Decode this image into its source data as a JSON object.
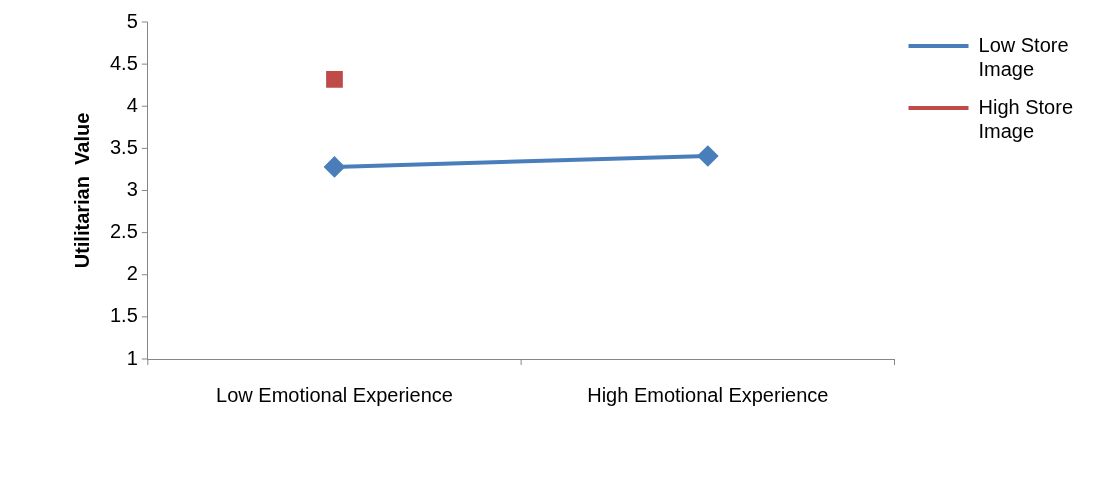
{
  "chart_data": {
    "type": "line",
    "ylabel": "Utilitarian  Value",
    "categories": [
      "Low Emotional Experience",
      "High Emotional Experience"
    ],
    "series": [
      {
        "name": "Low Store Image",
        "color": "#4a7ebb",
        "values": [
          3.28,
          3.41
        ],
        "marker": "diamond"
      },
      {
        "name": "High Store Image",
        "color": "#be4b48",
        "values": [
          4.32,
          null
        ],
        "marker": "square"
      }
    ],
    "ylim": [
      1,
      5
    ],
    "yticks": [
      1,
      1.5,
      2,
      2.5,
      3,
      3.5,
      4,
      4.5,
      5
    ],
    "grid": false,
    "legend": "right"
  }
}
